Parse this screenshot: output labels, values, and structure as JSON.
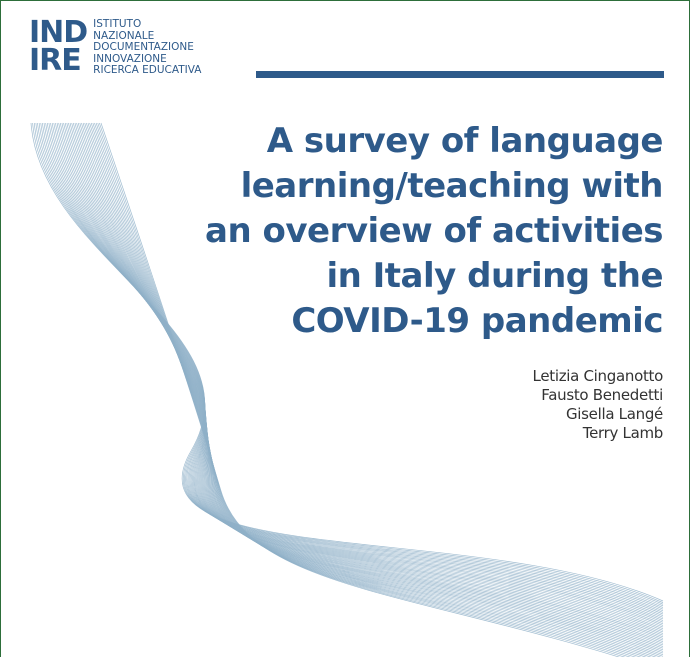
{
  "logo": {
    "mark_line1": "IND",
    "mark_line2": "IRE",
    "text_lines": [
      "ISTITUTO",
      "NAZIONALE",
      "DOCUMENTAZIONE",
      "INNOVAZIONE",
      "RICERCA EDUCATIVA"
    ]
  },
  "title_lines": [
    "A survey of language",
    "learning/teaching with",
    "an overview of activities",
    "in Italy during the",
    "COVID-19 pandemic"
  ],
  "authors": [
    "Letizia Cinganotto",
    "Fausto Benedetti",
    "Gisella Langé",
    "Terry Lamb"
  ],
  "colors": {
    "brand_blue": "#2e5a8a",
    "wave_line": "#8fb0c8",
    "frame_green": "#2d6e3a"
  }
}
